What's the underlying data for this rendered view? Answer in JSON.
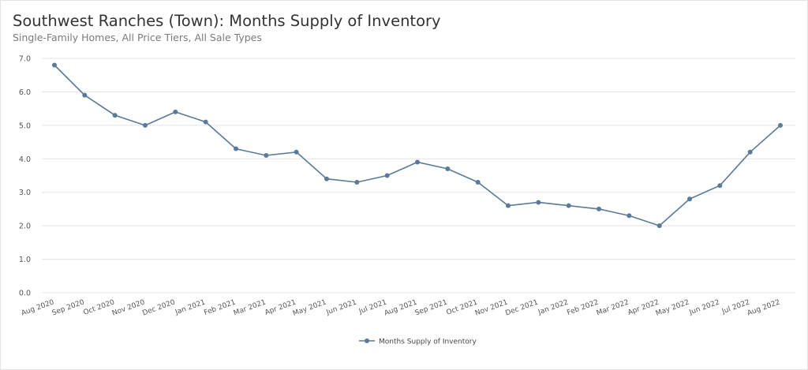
{
  "chart_data": {
    "type": "line",
    "title": "Southwest Ranches (Town): Months Supply of Inventory",
    "subtitle": "Single-Family Homes, All Price Tiers, All Sale Types",
    "xlabel": "",
    "ylabel": "",
    "ylim": [
      0,
      7
    ],
    "y_ticks": [
      "0.0",
      "1.0",
      "2.0",
      "3.0",
      "4.0",
      "5.0",
      "6.0",
      "7.0"
    ],
    "grid": true,
    "legend_position": "bottom",
    "categories": [
      "Aug 2020",
      "Sep 2020",
      "Oct 2020",
      "Nov 2020",
      "Dec 2020",
      "Jan 2021",
      "Feb 2021",
      "Mar 2021",
      "Apr 2021",
      "May 2021",
      "Jun 2021",
      "Jul 2021",
      "Aug 2021",
      "Sep 2021",
      "Oct 2021",
      "Nov 2021",
      "Dec 2021",
      "Jan 2022",
      "Feb 2022",
      "Mar 2022",
      "Apr 2022",
      "May 2022",
      "Jun 2022",
      "Jul 2022",
      "Aug 2022"
    ],
    "series": [
      {
        "name": "Months Supply of Inventory",
        "color": "#5a7a99",
        "values": [
          6.8,
          5.9,
          5.3,
          5.0,
          5.4,
          5.1,
          4.3,
          4.1,
          4.2,
          3.4,
          3.3,
          3.5,
          3.9,
          3.7,
          3.3,
          2.6,
          2.7,
          2.6,
          2.5,
          2.3,
          2.0,
          2.8,
          3.2,
          4.2,
          5.0
        ]
      }
    ]
  }
}
